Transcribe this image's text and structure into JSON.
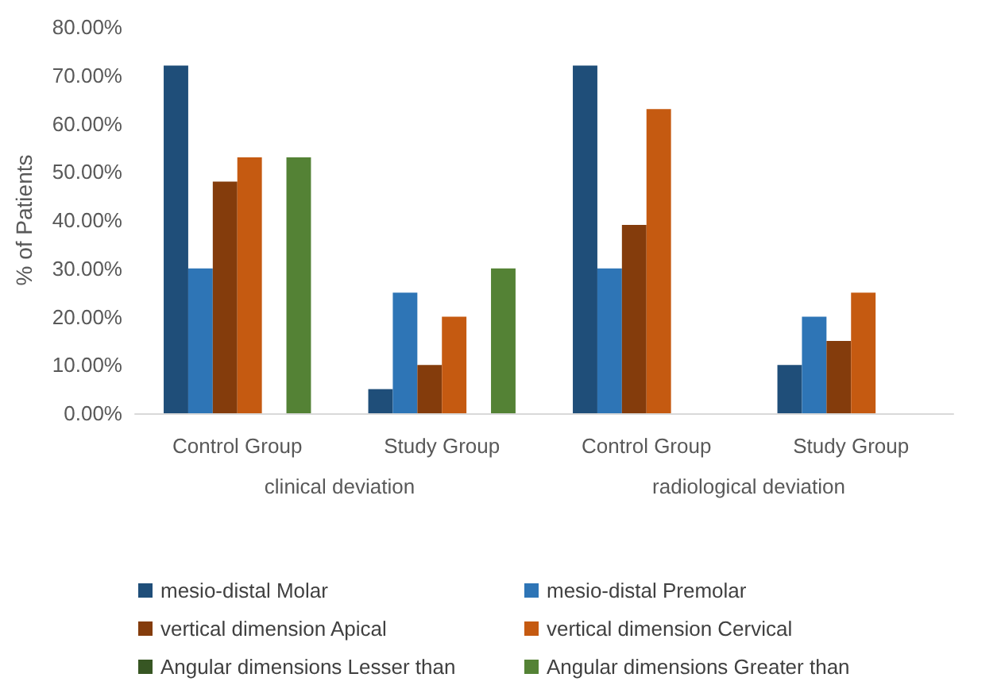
{
  "chart_data": {
    "type": "bar",
    "ylabel": "% of Patients",
    "categories": [
      "Control Group",
      "Study Group",
      "Control Group",
      "Study Group"
    ],
    "annotations": [
      "clinical deviation",
      "radiological deviation"
    ],
    "series": [
      {
        "name": "mesio-distal Molar",
        "color": "#1f4e79",
        "values": [
          72,
          5,
          72,
          10
        ]
      },
      {
        "name": "mesio-distal Premolar",
        "color": "#2e75b6",
        "values": [
          30,
          25,
          30,
          20
        ]
      },
      {
        "name": "vertical dimension Apical",
        "color": "#843c0c",
        "values": [
          48,
          10,
          39,
          15
        ]
      },
      {
        "name": "vertical dimension Cervical",
        "color": "#c55a11",
        "values": [
          53,
          20,
          63,
          25
        ]
      },
      {
        "name": "Angular dimensions Lesser than",
        "color": "#375623",
        "values": [
          0,
          0,
          null,
          null
        ]
      },
      {
        "name": "Angular dimensions Greater than",
        "color": "#548235",
        "values": [
          53,
          30,
          null,
          null
        ]
      }
    ],
    "ylim": [
      0,
      80
    ],
    "yticks": [
      {
        "value": 0,
        "label": "0.00%"
      },
      {
        "value": 10,
        "label": "10.00%"
      },
      {
        "value": 20,
        "label": "20.00%"
      },
      {
        "value": 30,
        "label": "30.00%"
      },
      {
        "value": 40,
        "label": "40.00%"
      },
      {
        "value": 50,
        "label": "50.00%"
      },
      {
        "value": 60,
        "label": "60.00%"
      },
      {
        "value": 70,
        "label": "70.00%"
      },
      {
        "value": 80,
        "label": "80.00%"
      }
    ],
    "grid": false,
    "legend": "bottom"
  }
}
